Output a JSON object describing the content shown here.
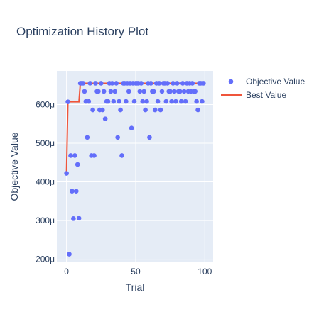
{
  "chart_data": {
    "type": "scatter",
    "title": "Optimization History Plot",
    "xlabel": "Trial",
    "ylabel": "Objective Value",
    "xlim": [
      -7,
      106
    ],
    "ylim": [
      0.000192,
      0.000687
    ],
    "x_ticks": [
      0,
      50,
      100
    ],
    "x_tick_labels": [
      "0",
      "50",
      "100"
    ],
    "y_ticks": [
      0.0002,
      0.0003,
      0.0004,
      0.0005,
      0.0006
    ],
    "y_tick_labels": [
      "200μ",
      "300μ",
      "400μ",
      "500μ",
      "600μ"
    ],
    "grid": true,
    "legend_position": "top-right",
    "colors": {
      "objective": "#636efa",
      "best": "#ef553b",
      "plot_bg": "#e5ecf6",
      "grid": "#ffffff"
    },
    "series": [
      {
        "name": "Objective Value",
        "type": "scatter",
        "x": [
          0,
          1,
          2,
          3,
          4,
          5,
          6,
          7,
          8,
          9,
          10,
          11,
          12,
          13,
          14,
          15,
          16,
          17,
          18,
          19,
          20,
          21,
          22,
          23,
          24,
          25,
          26,
          27,
          28,
          29,
          30,
          31,
          32,
          33,
          34,
          35,
          36,
          37,
          38,
          39,
          40,
          41,
          42,
          43,
          44,
          45,
          46,
          47,
          48,
          49,
          50,
          51,
          52,
          53,
          54,
          55,
          56,
          57,
          58,
          59,
          60,
          61,
          62,
          63,
          64,
          65,
          66,
          67,
          68,
          69,
          70,
          71,
          72,
          73,
          74,
          75,
          76,
          77,
          78,
          79,
          80,
          81,
          82,
          83,
          84,
          85,
          86,
          87,
          88,
          89,
          90,
          91,
          92,
          93,
          94,
          95,
          96,
          97,
          98,
          99
        ],
        "y": [
          0.000422,
          0.000607,
          0.000213,
          0.000468,
          0.000376,
          0.000305,
          0.000468,
          0.000376,
          0.000445,
          0.000306,
          0.000655,
          0.000655,
          0.000655,
          0.000634,
          0.000608,
          0.000515,
          0.000608,
          0.000655,
          0.000468,
          0.000586,
          0.000468,
          0.000655,
          0.000634,
          0.000634,
          0.000586,
          0.000655,
          0.000586,
          0.000634,
          0.000563,
          0.000608,
          0.000608,
          0.000655,
          0.000634,
          0.000655,
          0.000608,
          0.000634,
          0.000655,
          0.000515,
          0.000608,
          0.000586,
          0.000468,
          0.000655,
          0.000655,
          0.000608,
          0.000655,
          0.000634,
          0.000655,
          0.000539,
          0.000655,
          0.000608,
          0.000655,
          0.000655,
          0.000655,
          0.000634,
          0.000655,
          0.000608,
          0.000634,
          0.000586,
          0.000608,
          0.000655,
          0.000515,
          0.000655,
          0.000634,
          0.000634,
          0.000586,
          0.000655,
          0.000608,
          0.000655,
          0.000586,
          0.000634,
          0.000655,
          0.000655,
          0.000608,
          0.000655,
          0.000634,
          0.000634,
          0.000608,
          0.000655,
          0.000634,
          0.000608,
          0.000655,
          0.000634,
          0.000634,
          0.000608,
          0.000655,
          0.000634,
          0.000608,
          0.000655,
          0.000634,
          0.000655,
          0.000634,
          0.000655,
          0.000634,
          0.000634,
          0.000608,
          0.000586,
          0.000655,
          0.000655,
          0.000608,
          0.000655
        ]
      },
      {
        "name": "Best Value",
        "type": "line",
        "x": [
          0,
          1,
          2,
          3,
          4,
          5,
          6,
          7,
          8,
          9,
          10,
          11,
          12,
          13,
          14,
          15,
          16,
          17,
          18,
          19,
          20,
          21,
          22,
          23,
          24,
          25,
          26,
          27,
          28,
          29,
          30,
          31,
          32,
          33,
          34,
          35,
          36,
          37,
          38,
          39,
          40,
          41,
          42,
          43,
          44,
          45,
          46,
          47,
          48,
          49,
          50,
          51,
          52,
          53,
          54,
          55,
          56,
          57,
          58,
          59,
          60,
          61,
          62,
          63,
          64,
          65,
          66,
          67,
          68,
          69,
          70,
          71,
          72,
          73,
          74,
          75,
          76,
          77,
          78,
          79,
          80,
          81,
          82,
          83,
          84,
          85,
          86,
          87,
          88,
          89,
          90,
          91,
          92,
          93,
          94,
          95,
          96,
          97,
          98,
          99
        ],
        "y": [
          0.000422,
          0.000607,
          0.000607,
          0.000607,
          0.000607,
          0.000607,
          0.000607,
          0.000607,
          0.000607,
          0.000607,
          0.000655,
          0.000655,
          0.000655,
          0.000655,
          0.000655,
          0.000655,
          0.000655,
          0.000655,
          0.000655,
          0.000655,
          0.000655,
          0.000655,
          0.000655,
          0.000655,
          0.000655,
          0.000655,
          0.000655,
          0.000655,
          0.000655,
          0.000655,
          0.000655,
          0.000655,
          0.000655,
          0.000655,
          0.000655,
          0.000655,
          0.000655,
          0.000655,
          0.000655,
          0.000655,
          0.000655,
          0.000655,
          0.000655,
          0.000655,
          0.000655,
          0.000655,
          0.000655,
          0.000655,
          0.000655,
          0.000655,
          0.000655,
          0.000655,
          0.000655,
          0.000655,
          0.000655,
          0.000655,
          0.000655,
          0.000655,
          0.000655,
          0.000655,
          0.000655,
          0.000655,
          0.000655,
          0.000655,
          0.000655,
          0.000655,
          0.000655,
          0.000655,
          0.000655,
          0.000655,
          0.000655,
          0.000655,
          0.000655,
          0.000655,
          0.000655,
          0.000655,
          0.000655,
          0.000655,
          0.000655,
          0.000655,
          0.000655,
          0.000655,
          0.000655,
          0.000655,
          0.000655,
          0.000655,
          0.000655,
          0.000655,
          0.000655,
          0.000655,
          0.000655,
          0.000655,
          0.000655,
          0.000655,
          0.000655,
          0.000655,
          0.000655,
          0.000655,
          0.000655,
          0.000655
        ]
      }
    ]
  }
}
